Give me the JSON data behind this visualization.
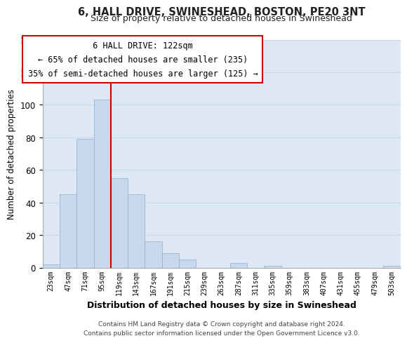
{
  "title": "6, HALL DRIVE, SWINESHEAD, BOSTON, PE20 3NT",
  "subtitle": "Size of property relative to detached houses in Swineshead",
  "xlabel": "Distribution of detached houses by size in Swineshead",
  "ylabel": "Number of detached properties",
  "bar_labels": [
    "23sqm",
    "47sqm",
    "71sqm",
    "95sqm",
    "119sqm",
    "143sqm",
    "167sqm",
    "191sqm",
    "215sqm",
    "239sqm",
    "263sqm",
    "287sqm",
    "311sqm",
    "335sqm",
    "359sqm",
    "383sqm",
    "407sqm",
    "431sqm",
    "455sqm",
    "479sqm",
    "503sqm"
  ],
  "bar_values": [
    2,
    45,
    79,
    103,
    55,
    45,
    16,
    9,
    5,
    0,
    0,
    3,
    0,
    1,
    0,
    0,
    0,
    0,
    0,
    0,
    1
  ],
  "bar_color": "#c8d9ee",
  "bar_edge_color": "#9ab4d4",
  "vline_color": "#cc0000",
  "ylim": [
    0,
    140
  ],
  "yticks": [
    0,
    20,
    40,
    60,
    80,
    100,
    120,
    140
  ],
  "annotation_title": "6 HALL DRIVE: 122sqm",
  "annotation_line1": "← 65% of detached houses are smaller (235)",
  "annotation_line2": "35% of semi-detached houses are larger (125) →",
  "annotation_box_color": "#ffffff",
  "annotation_box_edge": "#cc0000",
  "footer_line1": "Contains HM Land Registry data © Crown copyright and database right 2024.",
  "footer_line2": "Contains public sector information licensed under the Open Government Licence v3.0.",
  "grid_color": "#c8d8ea",
  "background_color": "#dde8f4"
}
